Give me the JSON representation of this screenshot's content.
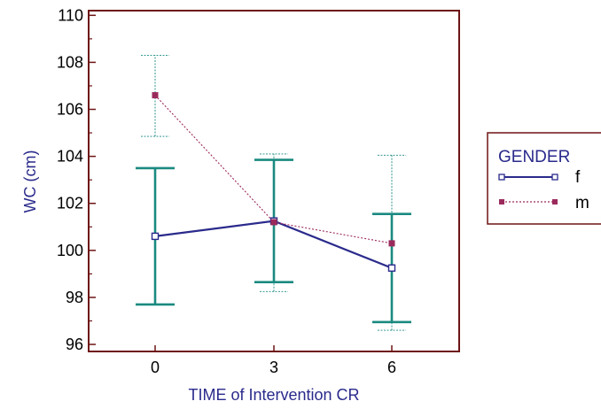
{
  "chart_data": {
    "type": "line",
    "xlabel": "TIME of Intervention CR",
    "ylabel": "WC (cm)",
    "x": [
      0,
      3,
      6
    ],
    "x_tick_labels": [
      "0",
      "3",
      "6"
    ],
    "ylim": [
      95.7,
      110.2
    ],
    "y_ticks": [
      96,
      98,
      100,
      102,
      104,
      106,
      108,
      110
    ],
    "grid": false,
    "legend": {
      "title": "GENDER",
      "placement": "right",
      "entries": [
        "f",
        "m"
      ]
    },
    "series": [
      {
        "name": "f",
        "values": [
          100.6,
          101.25,
          99.25
        ],
        "error_low": [
          97.7,
          98.65,
          96.95
        ],
        "error_high": [
          103.5,
          103.85,
          101.55
        ],
        "color": "#2a2a8c",
        "error_color": "#1a8a80",
        "marker": "open-square",
        "line_style": "solid"
      },
      {
        "name": "m",
        "values": [
          106.6,
          101.2,
          100.3
        ],
        "error_low": [
          104.85,
          98.25,
          96.6
        ],
        "error_high": [
          108.3,
          104.1,
          104.05
        ],
        "color": "#9b2a5c",
        "error_color": "#1a8a80",
        "marker": "filled-square",
        "line_style": "dotted"
      }
    ]
  },
  "colors": {
    "frame": "#6e1414",
    "axis_text": "#2a2a8c",
    "tick_text": "#000000"
  }
}
